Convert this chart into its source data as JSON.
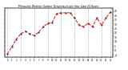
{
  "title": "Milwaukee Weather Outdoor Temperature per Hour (Last 24 Hours)",
  "hours": [
    0,
    1,
    2,
    3,
    4,
    5,
    6,
    7,
    8,
    9,
    10,
    11,
    12,
    13,
    14,
    15,
    16,
    17,
    18,
    19,
    20,
    21,
    22,
    23
  ],
  "temps": [
    -4,
    4,
    13,
    19,
    22,
    19,
    17,
    21,
    27,
    31,
    32,
    42,
    43,
    43,
    43,
    37,
    29,
    27,
    31,
    27,
    37,
    29,
    37,
    44
  ],
  "line_color": "#ff0000",
  "marker_color": "#333333",
  "bg_color": "#ffffff",
  "grid_color": "#888888",
  "ylim": [
    -8,
    48
  ],
  "yticks": [
    -5,
    0,
    5,
    10,
    15,
    20,
    25,
    30,
    35,
    40,
    45
  ],
  "grid_hours": [
    0,
    3,
    6,
    9,
    12,
    15,
    18,
    21,
    23
  ]
}
